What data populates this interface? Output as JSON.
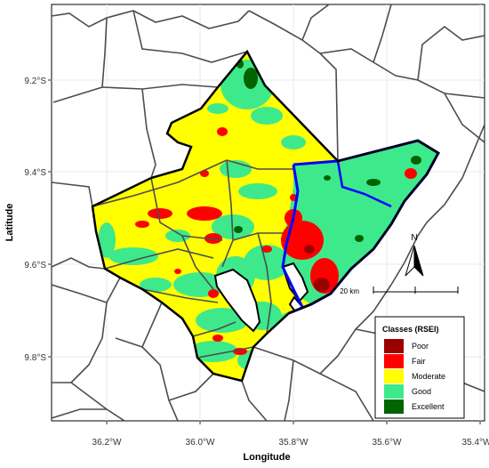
{
  "axes": {
    "x_label": "Longitude",
    "y_label": "Latitude",
    "x_ticks": [
      "36.2°W",
      "36.0°W",
      "35.8°W",
      "35.6°W",
      "35.4°W"
    ],
    "y_ticks": [
      "9.2°S",
      "9.4°S",
      "9.6°S",
      "9.8°S"
    ]
  },
  "north_arrow": {
    "label": "N"
  },
  "scale_bar": {
    "label": "20 km"
  },
  "legend": {
    "title": "Classes (RSEI)",
    "items": [
      {
        "label": "Poor",
        "color": "#9b0000"
      },
      {
        "label": "Fair",
        "color": "#ff0000"
      },
      {
        "label": "Moderate",
        "color": "#ffff00"
      },
      {
        "label": "Good",
        "color": "#3ee98b"
      },
      {
        "label": "Excellent",
        "color": "#006400"
      }
    ]
  },
  "colors": {
    "boundary": "#000000",
    "sub_boundary": "#0000ff",
    "municipal_lines": "#4d4d4d",
    "water": "#ffffff"
  }
}
